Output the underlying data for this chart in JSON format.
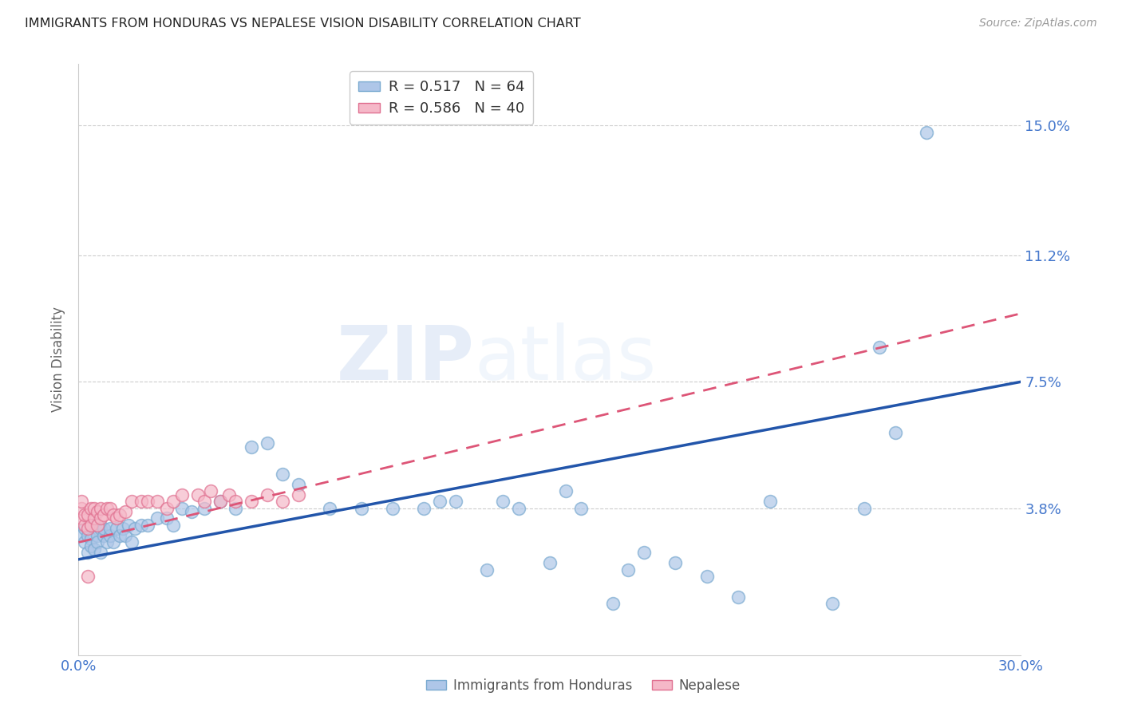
{
  "title": "IMMIGRANTS FROM HONDURAS VS NEPALESE VISION DISABILITY CORRELATION CHART",
  "source": "Source: ZipAtlas.com",
  "ylabel": "Vision Disability",
  "x_min": 0.0,
  "x_max": 0.3,
  "y_min": -0.005,
  "y_max": 0.168,
  "x_ticks": [
    0.0,
    0.05,
    0.1,
    0.15,
    0.2,
    0.25,
    0.3
  ],
  "x_tick_labels": [
    "0.0%",
    "",
    "",
    "",
    "",
    "",
    "30.0%"
  ],
  "y_tick_labels": [
    "15.0%",
    "11.2%",
    "7.5%",
    "3.8%"
  ],
  "y_tick_vals": [
    0.15,
    0.112,
    0.075,
    0.038
  ],
  "watermark_zip": "ZIP",
  "watermark_atlas": "atlas",
  "series1_label": "Immigrants from Honduras",
  "series1_color": "#aec6e8",
  "series1_edge_color": "#7aaad0",
  "series1_line_color": "#2255aa",
  "series2_label": "Nepalese",
  "series2_color": "#f5b8c8",
  "series2_edge_color": "#e07090",
  "series2_line_color": "#dd5577",
  "legend_r1": "R = 0.517",
  "legend_n1": "N = 64",
  "legend_r2": "R = 0.586",
  "legend_n2": "N = 40",
  "blue_scatter_x": [
    0.001,
    0.002,
    0.002,
    0.003,
    0.003,
    0.004,
    0.004,
    0.005,
    0.005,
    0.006,
    0.006,
    0.007,
    0.007,
    0.008,
    0.008,
    0.009,
    0.01,
    0.01,
    0.011,
    0.012,
    0.013,
    0.014,
    0.015,
    0.016,
    0.017,
    0.018,
    0.02,
    0.022,
    0.025,
    0.028,
    0.03,
    0.033,
    0.036,
    0.04,
    0.045,
    0.05,
    0.055,
    0.06,
    0.065,
    0.07,
    0.08,
    0.09,
    0.1,
    0.11,
    0.115,
    0.12,
    0.13,
    0.135,
    0.14,
    0.15,
    0.155,
    0.16,
    0.17,
    0.175,
    0.18,
    0.19,
    0.2,
    0.21,
    0.22,
    0.24,
    0.25,
    0.26,
    0.255,
    0.27
  ],
  "blue_scatter_y": [
    0.03,
    0.028,
    0.032,
    0.025,
    0.03,
    0.029,
    0.027,
    0.033,
    0.026,
    0.03,
    0.028,
    0.032,
    0.025,
    0.03,
    0.032,
    0.028,
    0.03,
    0.032,
    0.028,
    0.032,
    0.03,
    0.032,
    0.03,
    0.033,
    0.028,
    0.032,
    0.033,
    0.033,
    0.035,
    0.035,
    0.033,
    0.038,
    0.037,
    0.038,
    0.04,
    0.038,
    0.056,
    0.057,
    0.048,
    0.045,
    0.038,
    0.038,
    0.038,
    0.038,
    0.04,
    0.04,
    0.02,
    0.04,
    0.038,
    0.022,
    0.043,
    0.038,
    0.01,
    0.02,
    0.025,
    0.022,
    0.018,
    0.012,
    0.04,
    0.01,
    0.038,
    0.06,
    0.085,
    0.148
  ],
  "pink_scatter_x": [
    0.001,
    0.001,
    0.001,
    0.002,
    0.002,
    0.003,
    0.003,
    0.004,
    0.004,
    0.005,
    0.005,
    0.006,
    0.006,
    0.007,
    0.007,
    0.008,
    0.009,
    0.01,
    0.011,
    0.012,
    0.013,
    0.015,
    0.017,
    0.02,
    0.022,
    0.025,
    0.028,
    0.03,
    0.033,
    0.038,
    0.04,
    0.042,
    0.045,
    0.048,
    0.05,
    0.055,
    0.06,
    0.065,
    0.07,
    0.003
  ],
  "pink_scatter_y": [
    0.035,
    0.038,
    0.04,
    0.033,
    0.036,
    0.032,
    0.036,
    0.038,
    0.033,
    0.035,
    0.038,
    0.033,
    0.037,
    0.035,
    0.038,
    0.036,
    0.038,
    0.038,
    0.036,
    0.035,
    0.036,
    0.037,
    0.04,
    0.04,
    0.04,
    0.04,
    0.038,
    0.04,
    0.042,
    0.042,
    0.04,
    0.043,
    0.04,
    0.042,
    0.04,
    0.04,
    0.042,
    0.04,
    0.042,
    0.018
  ],
  "blue_line_x0": 0.0,
  "blue_line_y0": 0.023,
  "blue_line_x1": 0.3,
  "blue_line_y1": 0.075,
  "pink_line_x0": 0.0,
  "pink_line_y0": 0.028,
  "pink_line_x1": 0.3,
  "pink_line_y1": 0.095,
  "background_color": "#ffffff",
  "grid_color": "#cccccc",
  "title_color": "#222222",
  "tick_label_color": "#4477cc"
}
